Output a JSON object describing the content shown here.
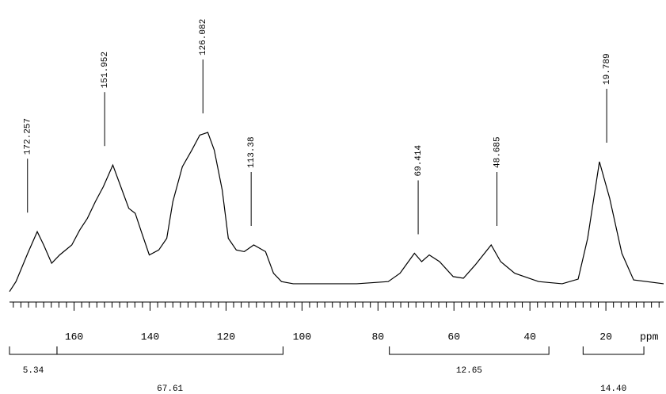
{
  "chart_data": {
    "type": "line",
    "x_label": "ppm",
    "x": [
      177,
      175.3,
      172.2,
      169.7,
      168,
      165.9,
      163.8,
      160.6,
      158.5,
      156.5,
      154.4,
      152.3,
      149.8,
      147.7,
      145.6,
      143.9,
      142.3,
      140.2,
      137.7,
      135.6,
      134,
      131.5,
      129,
      126.9,
      124.8,
      123.1,
      121,
      119.4,
      117.3,
      115.2,
      112.7,
      109.6,
      107.5,
      105.4,
      102.3,
      96,
      85.6,
      77.3,
      74.2,
      70.4,
      68.5,
      66.5,
      63.8,
      60.2,
      57.5,
      54.4,
      50.2,
      47.7,
      44,
      37.7,
      31.5,
      27.3,
      24.8,
      21.7,
      19,
      15.8,
      12.7,
      4.8
    ],
    "series": [
      {
        "color": "#000000",
        "values": [
          2,
          8,
          25,
          38,
          30,
          19,
          24,
          30,
          39,
          46,
          56,
          65,
          78,
          65,
          52,
          49,
          38,
          24,
          27,
          34,
          56,
          77,
          87,
          96,
          97.6,
          87,
          63,
          34,
          27,
          26,
          30,
          26,
          13,
          8,
          6.7,
          6.7,
          6.7,
          8,
          13,
          25,
          20,
          24,
          20,
          11,
          10,
          18,
          30,
          20,
          13,
          8,
          6.7,
          9.5,
          34,
          80,
          58,
          25,
          9,
          6.7
        ]
      }
    ],
    "xlim": [
      177,
      4.8
    ],
    "ylim": [
      0,
      100
    ],
    "xticks": [
      160,
      140,
      120,
      100,
      80,
      60,
      40,
      20
    ],
    "xminor_ticks": [
      176,
      174,
      172,
      170,
      168,
      166,
      164,
      162,
      158,
      156,
      154,
      152,
      150,
      148,
      146,
      144,
      142,
      138,
      136,
      134,
      132,
      130,
      128,
      126,
      124,
      122,
      118,
      116,
      114,
      112,
      110,
      108,
      106,
      104,
      102,
      98,
      96,
      94,
      92,
      90,
      88,
      86,
      84,
      82,
      78,
      76,
      74,
      72,
      70,
      68,
      66,
      64,
      62,
      58,
      56,
      54,
      52,
      50,
      48,
      46,
      44,
      42,
      38,
      36,
      34,
      32,
      30,
      28,
      26,
      24,
      22,
      18,
      16,
      14,
      12,
      10,
      8,
      6
    ],
    "peaks": [
      172.257,
      151.952,
      126.082,
      113.38,
      69.414,
      48.685,
      19.789
    ],
    "integrals": [
      {
        "range": [
          177,
          164.5
        ],
        "value": 5.34,
        "label": "5.34"
      },
      {
        "range": [
          164.5,
          105
        ],
        "value": 67.61,
        "label": "67.61"
      },
      {
        "range": [
          77,
          35
        ],
        "value": 12.65,
        "label": "12.65"
      },
      {
        "range": [
          26,
          10
        ],
        "value": 14.4,
        "label": "14.40"
      }
    ]
  }
}
